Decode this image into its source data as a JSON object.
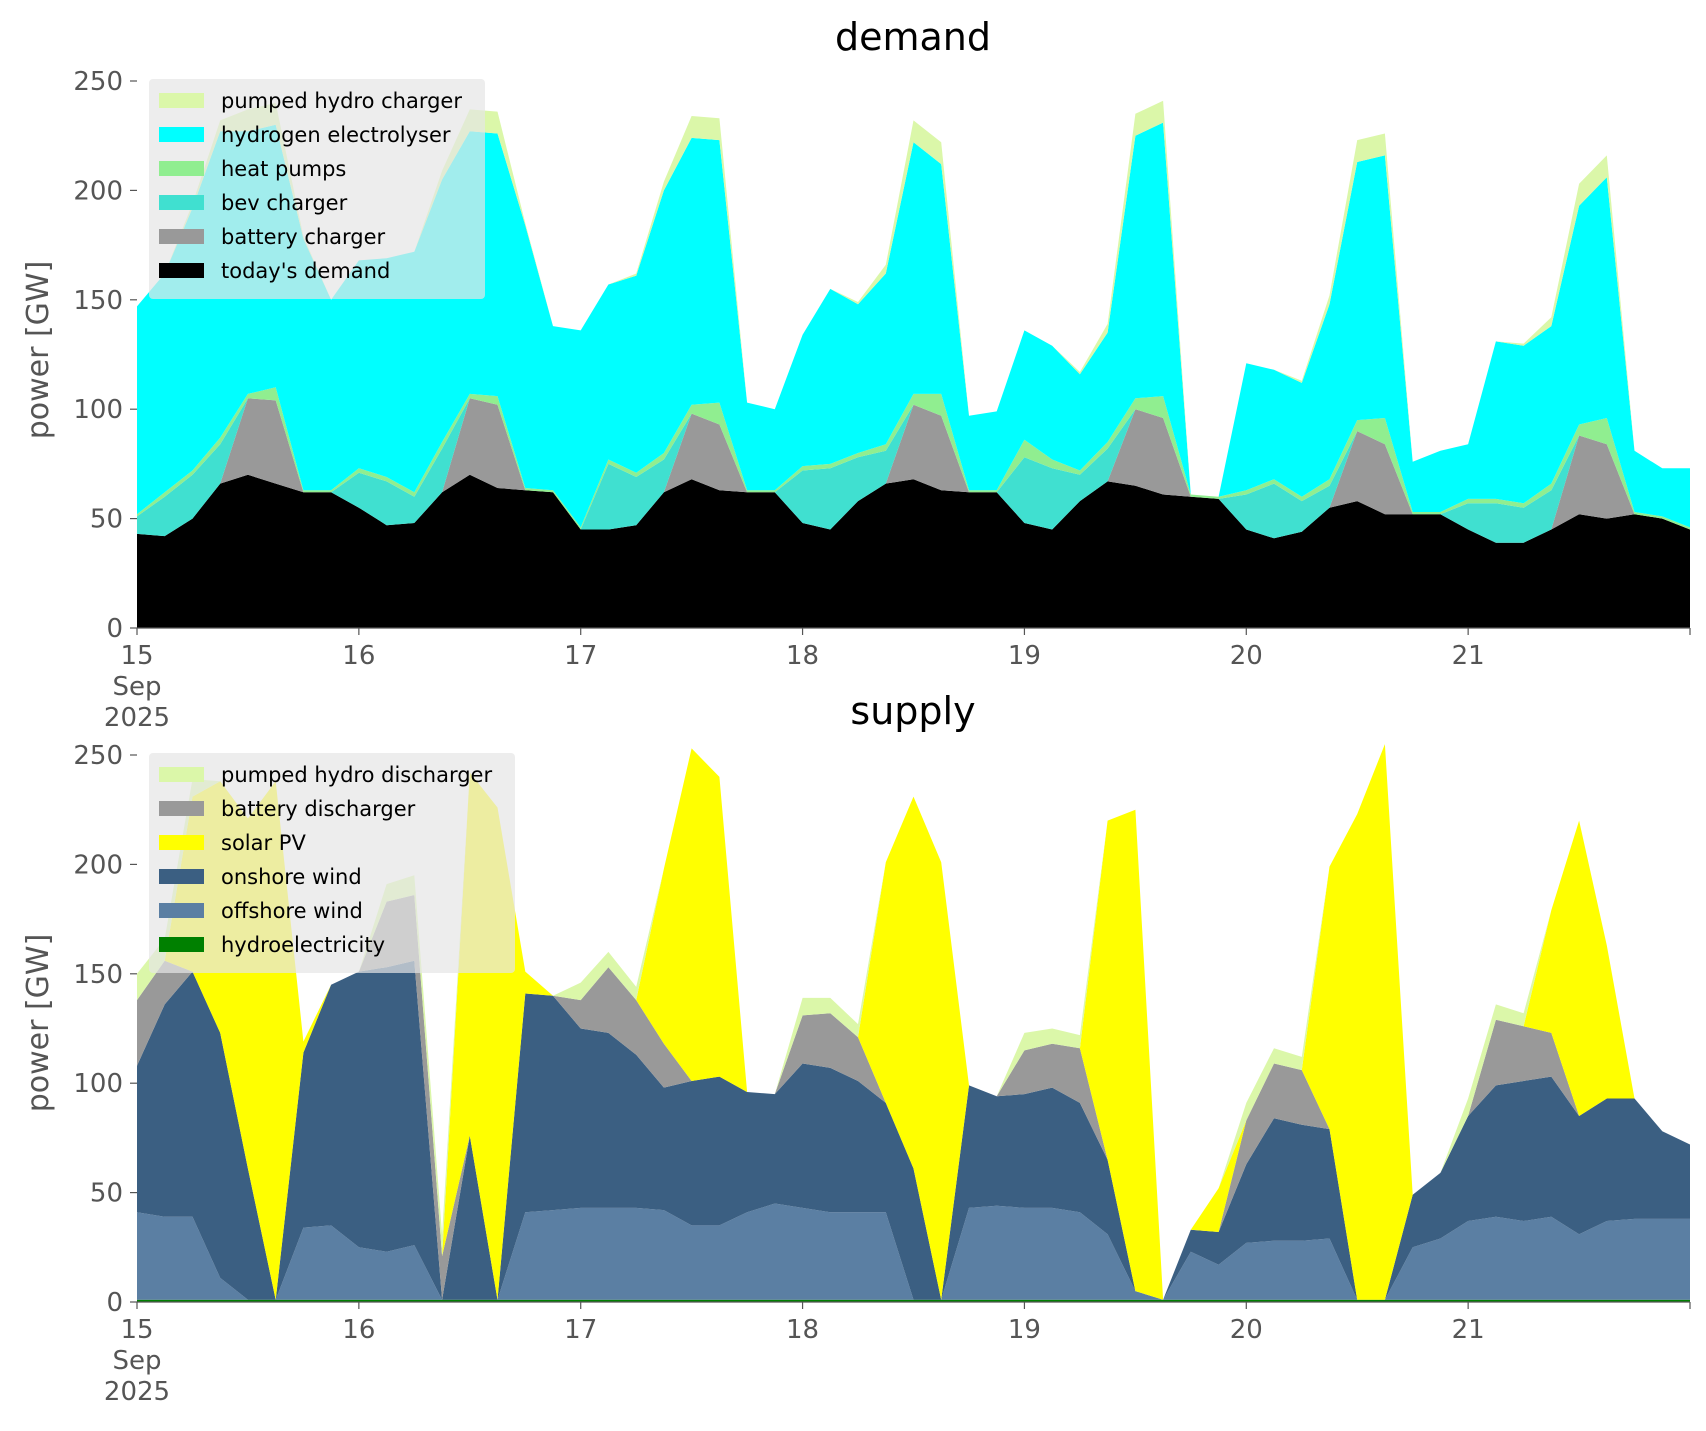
{
  "chart_data": [
    {
      "type": "area",
      "stacked": true,
      "title": "demand",
      "xlabel": "",
      "ylabel": "power [GW]",
      "ylim": [
        0,
        250
      ],
      "x_ticks": [
        {
          "value": "2025-09-15",
          "label": [
            "15",
            "Sep",
            "2025"
          ]
        },
        {
          "value": "2025-09-16",
          "label": [
            "16"
          ]
        },
        {
          "value": "2025-09-17",
          "label": [
            "17"
          ]
        },
        {
          "value": "2025-09-18",
          "label": [
            "18"
          ]
        },
        {
          "value": "2025-09-19",
          "label": [
            "19"
          ]
        },
        {
          "value": "2025-09-20",
          "label": [
            "20"
          ]
        },
        {
          "value": "2025-09-21",
          "label": [
            "21"
          ]
        }
      ],
      "y_ticks": [
        0,
        50,
        100,
        150,
        200,
        250
      ],
      "grid": false,
      "legend_position": "top-left",
      "x": [
        15.0,
        15.125,
        15.25,
        15.375,
        15.5,
        15.625,
        15.75,
        15.875,
        16.0,
        16.125,
        16.25,
        16.375,
        16.5,
        16.625,
        16.75,
        16.875,
        17.0,
        17.125,
        17.25,
        17.375,
        17.5,
        17.625,
        17.75,
        17.875,
        18.0,
        18.125,
        18.25,
        18.375,
        18.5,
        18.625,
        18.75,
        18.875,
        19.0,
        19.125,
        19.25,
        19.375,
        19.5,
        19.625,
        19.75,
        19.875,
        20.0,
        20.125,
        20.25,
        20.375,
        20.5,
        20.625,
        20.75,
        20.875,
        21.0,
        21.125,
        21.25,
        21.375,
        21.5,
        21.625,
        21.75,
        21.875,
        22.0
      ],
      "series": [
        {
          "name": "today's demand",
          "color": "#000000",
          "values": [
            43,
            42,
            50,
            66,
            70,
            66,
            62,
            62,
            55,
            47,
            48,
            62,
            70,
            64,
            63,
            62,
            45,
            45,
            47,
            62,
            68,
            63,
            62,
            62,
            48,
            45,
            58,
            66,
            68,
            63,
            62,
            62,
            48,
            45,
            58,
            67,
            65,
            61,
            60,
            59,
            45,
            41,
            44,
            55,
            58,
            52,
            52,
            52,
            45,
            39,
            39,
            45,
            52,
            50,
            52,
            50,
            45
          ]
        },
        {
          "name": "battery charger",
          "color": "#999999",
          "values": [
            0,
            0,
            0,
            0,
            35,
            38,
            0,
            0,
            0,
            0,
            0,
            0,
            35,
            38,
            0,
            0,
            0,
            0,
            0,
            0,
            30,
            30,
            0,
            0,
            0,
            0,
            0,
            0,
            34,
            34,
            0,
            0,
            0,
            0,
            0,
            0,
            35,
            35,
            0,
            0,
            0,
            0,
            0,
            0,
            32,
            32,
            0,
            0,
            0,
            0,
            0,
            0,
            36,
            34,
            0,
            0,
            0
          ]
        },
        {
          "name": "bev charger",
          "color": "#40e0d0",
          "values": [
            8,
            18,
            20,
            18,
            0,
            0,
            0,
            0,
            16,
            20,
            12,
            20,
            0,
            0,
            0,
            0,
            0,
            30,
            22,
            15,
            0,
            0,
            0,
            0,
            24,
            28,
            20,
            15,
            0,
            0,
            0,
            0,
            30,
            28,
            12,
            15,
            0,
            0,
            0,
            0,
            16,
            25,
            14,
            10,
            0,
            0,
            0,
            0,
            12,
            18,
            16,
            18,
            0,
            0,
            0,
            0,
            0
          ]
        },
        {
          "name": "heat pumps",
          "color": "#90ee90",
          "values": [
            1,
            2,
            2,
            3,
            2,
            6,
            1,
            1,
            2,
            2,
            2,
            3,
            2,
            4,
            1,
            1,
            1,
            2,
            2,
            3,
            4,
            10,
            1,
            1,
            2,
            2,
            2,
            3,
            5,
            10,
            1,
            1,
            8,
            4,
            2,
            3,
            5,
            10,
            1,
            1,
            2,
            2,
            2,
            3,
            5,
            12,
            1,
            1,
            2,
            2,
            2,
            3,
            5,
            12,
            1,
            1,
            1
          ]
        },
        {
          "name": "hydrogen electrolyser",
          "color": "#00ffff",
          "values": [
            95,
            100,
            120,
            140,
            120,
            120,
            115,
            87,
            95,
            100,
            110,
            120,
            120,
            120,
            120,
            75,
            90,
            80,
            90,
            120,
            122,
            120,
            40,
            37,
            60,
            80,
            68,
            78,
            115,
            105,
            34,
            36,
            50,
            52,
            44,
            50,
            120,
            125,
            0,
            0,
            58,
            50,
            52,
            80,
            118,
            120,
            23,
            28,
            25,
            72,
            72,
            72,
            100,
            110,
            28,
            22,
            27
          ]
        },
        {
          "name": "pumped hydro charger",
          "color": "#dbf7a9",
          "values": [
            0,
            0,
            2,
            5,
            10,
            10,
            1,
            0,
            0,
            0,
            0,
            4,
            10,
            10,
            1,
            0,
            0,
            0,
            1,
            4,
            10,
            10,
            0,
            0,
            0,
            0,
            1,
            4,
            10,
            10,
            0,
            0,
            0,
            0,
            1,
            4,
            10,
            10,
            0,
            0,
            0,
            0,
            1,
            4,
            10,
            10,
            0,
            0,
            0,
            0,
            1,
            4,
            10,
            10,
            0,
            0,
            0
          ]
        }
      ]
    },
    {
      "type": "area",
      "stacked": true,
      "title": "supply",
      "xlabel": "",
      "ylabel": "power [GW]",
      "ylim": [
        0,
        250
      ],
      "x_ticks": [
        {
          "value": "2025-09-15",
          "label": [
            "15",
            "Sep",
            "2025"
          ]
        },
        {
          "value": "2025-09-16",
          "label": [
            "16"
          ]
        },
        {
          "value": "2025-09-17",
          "label": [
            "17"
          ]
        },
        {
          "value": "2025-09-18",
          "label": [
            "18"
          ]
        },
        {
          "value": "2025-09-19",
          "label": [
            "19"
          ]
        },
        {
          "value": "2025-09-20",
          "label": [
            "20"
          ]
        },
        {
          "value": "2025-09-21",
          "label": [
            "21"
          ]
        }
      ],
      "y_ticks": [
        0,
        50,
        100,
        150,
        200,
        250
      ],
      "grid": false,
      "legend_position": "top-left",
      "x": [
        15.0,
        15.125,
        15.25,
        15.375,
        15.5,
        15.625,
        15.75,
        15.875,
        16.0,
        16.125,
        16.25,
        16.375,
        16.5,
        16.625,
        16.75,
        16.875,
        17.0,
        17.125,
        17.25,
        17.375,
        17.5,
        17.625,
        17.75,
        17.875,
        18.0,
        18.125,
        18.25,
        18.375,
        18.5,
        18.625,
        18.75,
        18.875,
        19.0,
        19.125,
        19.25,
        19.375,
        19.5,
        19.625,
        19.75,
        19.875,
        20.0,
        20.125,
        20.25,
        20.375,
        20.5,
        20.625,
        20.75,
        20.875,
        21.0,
        21.125,
        21.25,
        21.375,
        21.5,
        21.625,
        21.75,
        21.875,
        22.0
      ],
      "series": [
        {
          "name": "hydroelectricity",
          "color": "#008000",
          "values": [
            1,
            1,
            1,
            1,
            1,
            1,
            1,
            1,
            1,
            1,
            1,
            1,
            1,
            1,
            1,
            1,
            1,
            1,
            1,
            1,
            1,
            1,
            1,
            1,
            1,
            1,
            1,
            1,
            1,
            1,
            1,
            1,
            1,
            1,
            1,
            1,
            1,
            1,
            1,
            1,
            1,
            1,
            1,
            1,
            1,
            1,
            1,
            1,
            1,
            1,
            1,
            1,
            1,
            1,
            1,
            1,
            1
          ]
        },
        {
          "name": "offshore wind",
          "color": "#5b7fa3",
          "values": [
            40,
            38,
            38,
            10,
            0,
            0,
            33,
            34,
            24,
            22,
            25,
            0,
            0,
            0,
            40,
            41,
            42,
            42,
            42,
            41,
            34,
            34,
            40,
            44,
            42,
            40,
            40,
            40,
            0,
            0,
            42,
            43,
            42,
            42,
            40,
            30,
            4,
            0,
            22,
            16,
            26,
            27,
            27,
            28,
            0,
            0,
            24,
            28,
            36,
            38,
            36,
            38,
            30,
            36,
            37,
            37,
            37
          ]
        },
        {
          "name": "onshore wind",
          "color": "#3b5f82",
          "values": [
            67,
            97,
            112,
            112,
            60,
            0,
            80,
            110,
            126,
            130,
            130,
            0,
            75,
            0,
            100,
            98,
            82,
            80,
            70,
            56,
            66,
            68,
            55,
            50,
            66,
            66,
            60,
            50,
            60,
            0,
            56,
            50,
            52,
            55,
            50,
            34,
            0,
            0,
            10,
            15,
            36,
            56,
            53,
            50,
            0,
            0,
            24,
            30,
            48,
            60,
            64,
            64,
            54,
            56,
            55,
            40,
            34
          ]
        },
        {
          "name": "battery discharger",
          "color": "#999999",
          "values": [
            30,
            20,
            0,
            0,
            0,
            0,
            0,
            0,
            0,
            30,
            30,
            20,
            0,
            0,
            0,
            0,
            13,
            30,
            25,
            20,
            0,
            0,
            0,
            0,
            22,
            25,
            20,
            0,
            0,
            0,
            0,
            0,
            20,
            20,
            25,
            0,
            0,
            0,
            0,
            0,
            20,
            25,
            25,
            0,
            0,
            0,
            0,
            0,
            0,
            30,
            25,
            20,
            0,
            0,
            0,
            0,
            0
          ]
        },
        {
          "name": "solar PV",
          "color": "#ffff00",
          "values": [
            0,
            0,
            80,
            115,
            160,
            237,
            5,
            0,
            0,
            0,
            0,
            0,
            166,
            225,
            10,
            0,
            0,
            0,
            0,
            80,
            152,
            137,
            0,
            0,
            0,
            0,
            0,
            110,
            170,
            200,
            0,
            0,
            0,
            0,
            0,
            155,
            220,
            0,
            0,
            20,
            0,
            0,
            0,
            120,
            222,
            255,
            0,
            0,
            0,
            0,
            0,
            56,
            135,
            70,
            0,
            0,
            0
          ]
        },
        {
          "name": "pumped hydro discharger",
          "color": "#dbf7a9",
          "values": [
            12,
            10,
            8,
            0,
            0,
            0,
            0,
            0,
            0,
            8,
            9,
            10,
            0,
            0,
            0,
            0,
            8,
            7,
            6,
            0,
            0,
            0,
            0,
            0,
            8,
            7,
            6,
            0,
            0,
            0,
            0,
            0,
            8,
            7,
            6,
            0,
            0,
            0,
            0,
            0,
            8,
            7,
            6,
            0,
            0,
            0,
            0,
            0,
            8,
            7,
            6,
            0,
            0,
            0,
            0,
            0,
            0
          ]
        }
      ],
      "legend_order": [
        "pumped hydro discharger",
        "battery discharger",
        "solar PV",
        "onshore wind",
        "offshore wind",
        "hydroelectricity"
      ]
    }
  ],
  "panels": {
    "demand": {
      "title": "demand",
      "ylabel": "power [GW]",
      "legend": [
        "pumped hydro charger",
        "hydrogen electrolyser",
        "heat pumps",
        "bev charger",
        "battery charger",
        "today's demand"
      ]
    },
    "supply": {
      "title": "supply",
      "ylabel": "power [GW]",
      "legend": [
        "pumped hydro discharger",
        "battery discharger",
        "solar PV",
        "onshore wind",
        "offshore wind",
        "hydroelectricity"
      ]
    }
  }
}
